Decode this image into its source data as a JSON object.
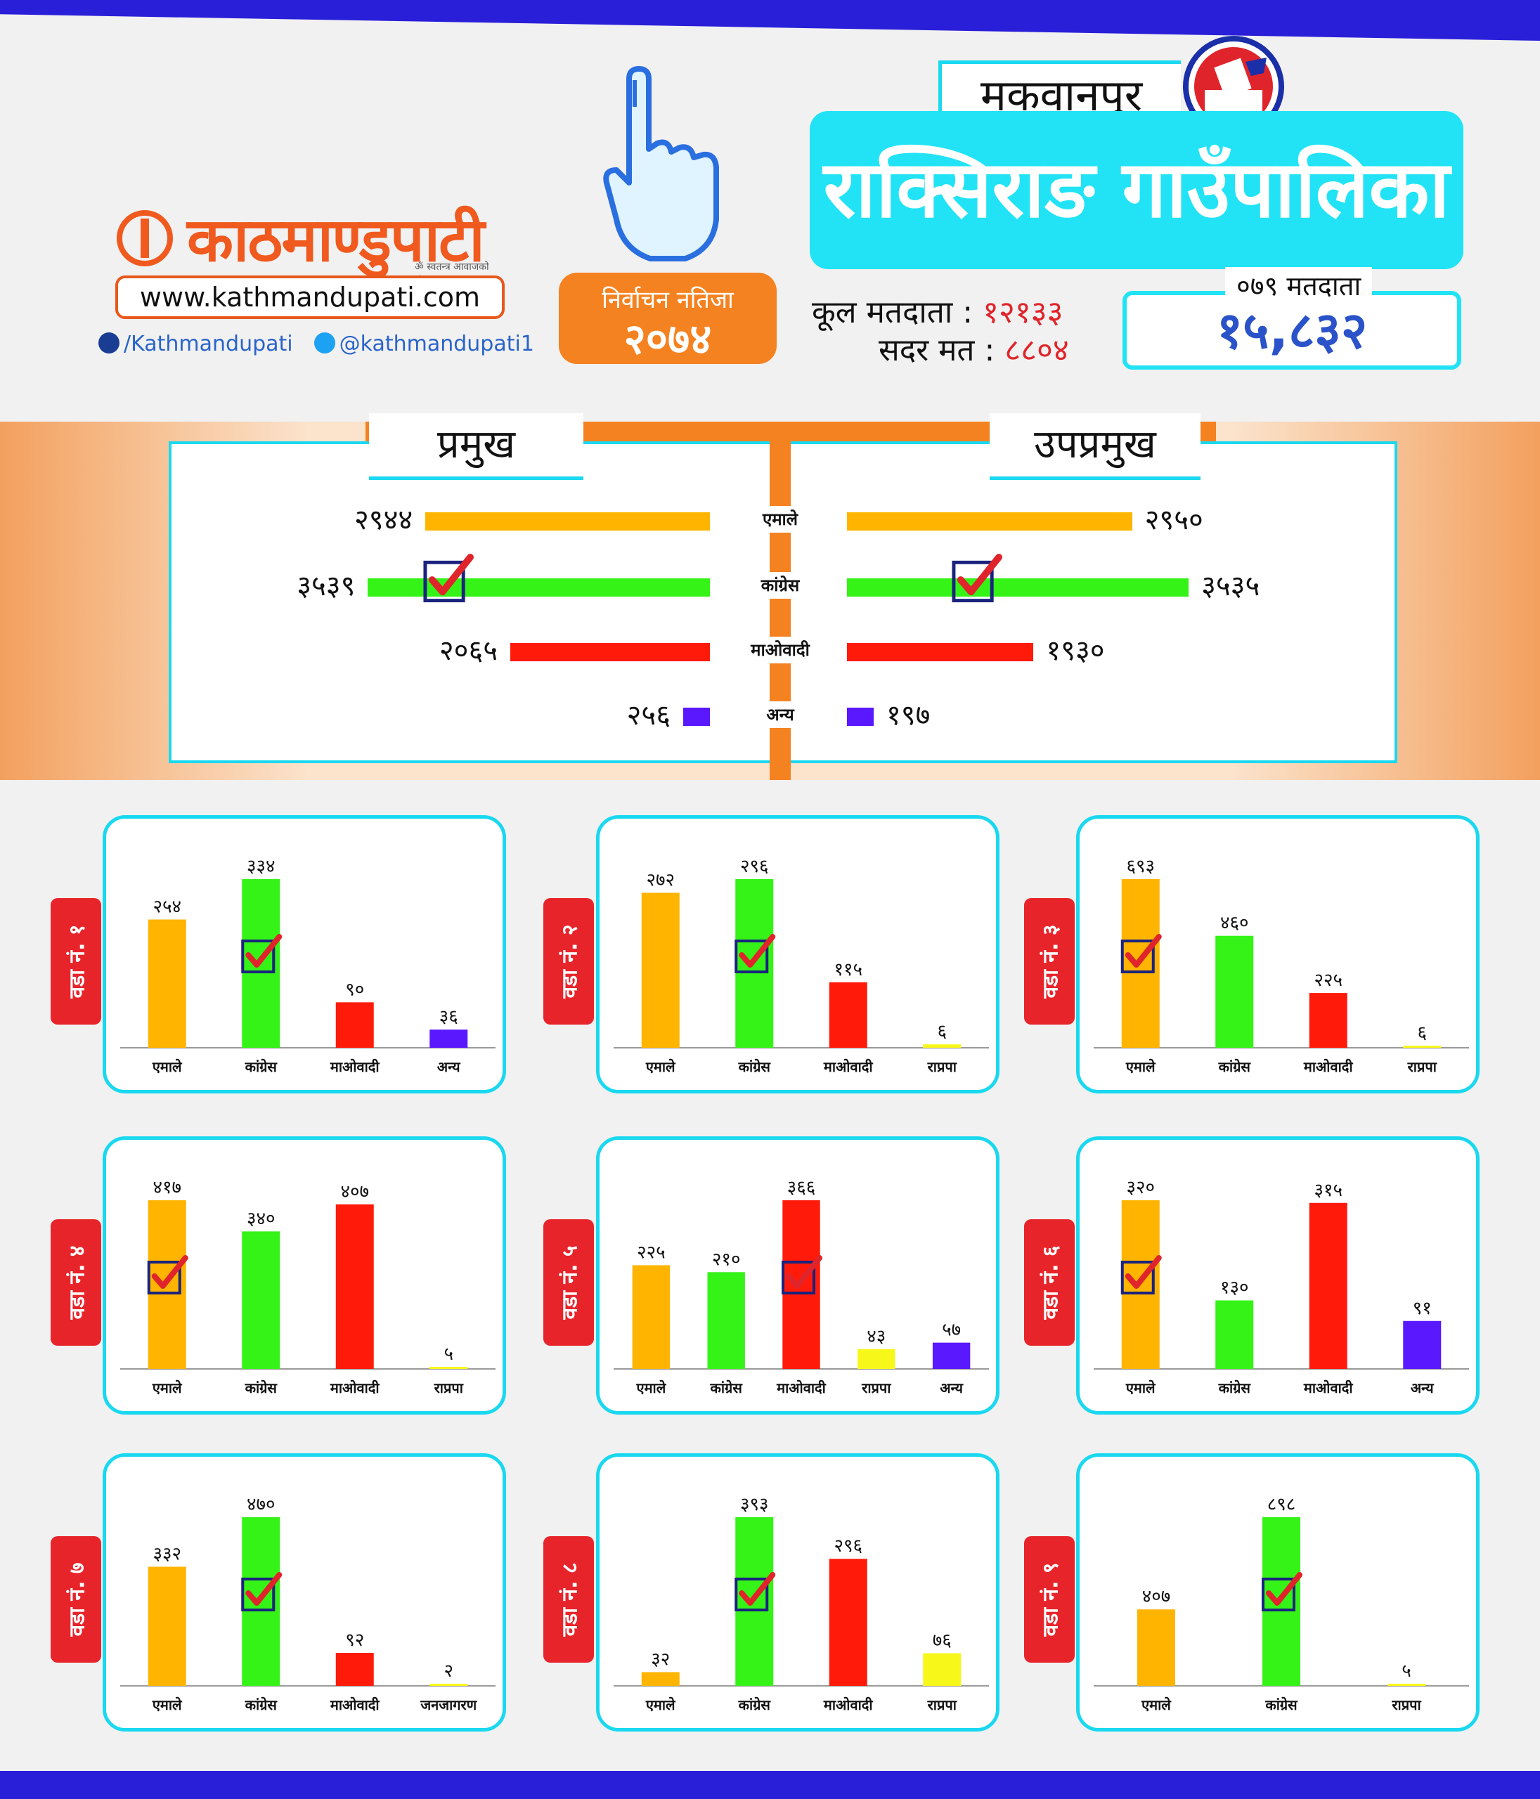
{
  "header": {
    "brand_name": "काठमाण्डुपाटी",
    "brand_tagline": "ॐ स्वतन्त्र आवाजको संवाद",
    "url": "www.kathmandupati.com",
    "facebook": "/Kathmandupati",
    "twitter": "@kathmandupati1",
    "result_label": "निर्वाचन नतिजा",
    "result_year": "२०७४",
    "district": "मकवानपुर",
    "municipality": "राक्सिराङ गाउँपालिका",
    "total_voters_label": "कूल मतदाता :",
    "total_voters": "१२१३३",
    "valid_votes_label": "सदर मत :",
    "valid_votes": "८८०४",
    "voters_079_label": "०७९ मतदाता",
    "voters_079": "१५,८३२"
  },
  "colors": {
    "uml": "#ffb400",
    "nc": "#35f317",
    "maoist": "#ff1a0a",
    "rpp": "#f7f71a",
    "other": "#5a18ff",
    "accent_cyan": "#1ad8f0",
    "accent_orange": "#f58220",
    "tag_red": "#e8242b"
  },
  "summary": {
    "left_title": "प्रमुख",
    "right_title": "उपप्रमुख",
    "rows": [
      {
        "party": "एमाले",
        "color": "uml",
        "mayor": 2944,
        "mayor_label": "२९४४",
        "deputy": 2950,
        "deputy_label": "२९५०",
        "winner": false
      },
      {
        "party": "कांग्रेस",
        "color": "nc",
        "mayor": 3539,
        "mayor_label": "३५३९",
        "deputy": 3535,
        "deputy_label": "३५३५",
        "winner": true
      },
      {
        "party": "माओवादी",
        "color": "maoist",
        "mayor": 2065,
        "mayor_label": "२०६५",
        "deputy": 1930,
        "deputy_label": "१९३०",
        "winner": false
      },
      {
        "party": "अन्य",
        "color": "other",
        "mayor": 256,
        "mayor_label": "२५६",
        "deputy": 197,
        "deputy_label": "१९७",
        "winner": false
      }
    ]
  },
  "chart_data": {
    "type": "bar",
    "title": "राक्सिराङ गाउँपालिका",
    "wards": [
      {
        "label": "वडा नं. १",
        "categories": [
          "एमाले",
          "कांग्रेस",
          "माओवादी",
          "अन्य"
        ],
        "values": [
          254,
          334,
          90,
          36
        ],
        "value_labels": [
          "२५४",
          "३३४",
          "९०",
          "३६"
        ],
        "colors": [
          "uml",
          "nc",
          "maoist",
          "other"
        ],
        "winner": 1
      },
      {
        "label": "वडा नं. २",
        "categories": [
          "एमाले",
          "कांग्रेस",
          "माओवादी",
          "राप्रपा"
        ],
        "values": [
          272,
          296,
          115,
          6
        ],
        "value_labels": [
          "२७२",
          "२९६",
          "११५",
          "६"
        ],
        "colors": [
          "uml",
          "nc",
          "maoist",
          "rpp"
        ],
        "winner": 1
      },
      {
        "label": "वडा नं. ३",
        "categories": [
          "एमाले",
          "कांग्रेस",
          "माओवादी",
          "राप्रपा"
        ],
        "values": [
          693,
          460,
          225,
          6
        ],
        "value_labels": [
          "६९३",
          "४६०",
          "२२५",
          "६"
        ],
        "colors": [
          "uml",
          "nc",
          "maoist",
          "rpp"
        ],
        "winner": 0
      },
      {
        "label": "वडा नं. ४",
        "categories": [
          "एमाले",
          "कांग्रेस",
          "माओवादी",
          "राप्रपा"
        ],
        "values": [
          417,
          340,
          407,
          5
        ],
        "value_labels": [
          "४१७",
          "३४०",
          "४०७",
          "५"
        ],
        "colors": [
          "uml",
          "nc",
          "maoist",
          "rpp"
        ],
        "winner": 0
      },
      {
        "label": "वडा नं. ५",
        "categories": [
          "एमाले",
          "कांग्रेस",
          "माओवादी",
          "राप्रपा",
          "अन्य"
        ],
        "values": [
          225,
          210,
          366,
          43,
          57
        ],
        "value_labels": [
          "२२५",
          "२१०",
          "३६६",
          "४३",
          "५७"
        ],
        "colors": [
          "uml",
          "nc",
          "maoist",
          "rpp",
          "other"
        ],
        "winner": 2
      },
      {
        "label": "वडा नं. ६",
        "categories": [
          "एमाले",
          "कांग्रेस",
          "माओवादी",
          "अन्य"
        ],
        "values": [
          320,
          130,
          315,
          91
        ],
        "value_labels": [
          "३२०",
          "१३०",
          "३१५",
          "९१"
        ],
        "colors": [
          "uml",
          "nc",
          "maoist",
          "other"
        ],
        "winner": 0
      },
      {
        "label": "वडा नं. ७",
        "categories": [
          "एमाले",
          "कांग्रेस",
          "माओवादी",
          "जनजागरण"
        ],
        "values": [
          332,
          470,
          92,
          2
        ],
        "value_labels": [
          "३३२",
          "४७०",
          "९२",
          "२"
        ],
        "colors": [
          "uml",
          "nc",
          "maoist",
          "rpp"
        ],
        "winner": 1
      },
      {
        "label": "वडा नं. ८",
        "categories": [
          "एमाले",
          "कांग्रेस",
          "माओवादी",
          "राप्रपा"
        ],
        "values": [
          32,
          393,
          296,
          76
        ],
        "value_labels": [
          "३२",
          "३९३",
          "२९६",
          "७६"
        ],
        "colors": [
          "uml",
          "nc",
          "maoist",
          "rpp"
        ],
        "winner": 1
      },
      {
        "label": "वडा नं. ९",
        "categories": [
          "एमाले",
          "कांग्रेस",
          "राप्रपा"
        ],
        "values": [
          407,
          898,
          5
        ],
        "value_labels": [
          "४०७",
          "८९८",
          "५"
        ],
        "colors": [
          "uml",
          "nc",
          "rpp"
        ],
        "winner": 1
      }
    ]
  }
}
